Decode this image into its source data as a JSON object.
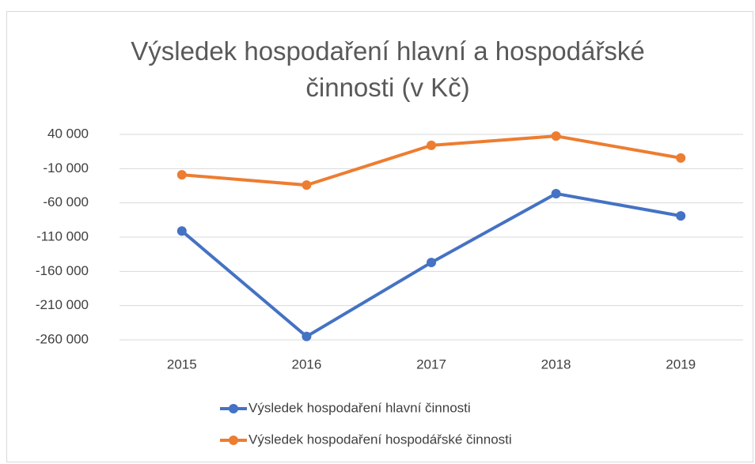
{
  "chart_data": {
    "type": "line",
    "title": "Výsledek hospodaření hlavní a hospodářské činnosti (v Kč)",
    "categories": [
      "2015",
      "2016",
      "2017",
      "2018",
      "2019"
    ],
    "series": [
      {
        "name": "Výsledek hospodaření hlavní činnosti",
        "color": "#4472c4",
        "values": [
          -101000,
          -255000,
          -147000,
          -46500,
          -79000
        ]
      },
      {
        "name": "Výsledek hospodaření hospodářské činnosti",
        "color": "#ed7d31",
        "values": [
          -19000,
          -34000,
          24000,
          37500,
          5500
        ]
      }
    ],
    "ylim": [
      -260000,
      40000
    ],
    "yticks": [
      {
        "value": 40000,
        "label": "40 000"
      },
      {
        "value": -10000,
        "label": "-10 000"
      },
      {
        "value": -60000,
        "label": "-60 000"
      },
      {
        "value": -110000,
        "label": "-110 000"
      },
      {
        "value": -160000,
        "label": "-160 000"
      },
      {
        "value": -210000,
        "label": "-210 000"
      },
      {
        "value": -260000,
        "label": "-260 000"
      }
    ],
    "grid": true,
    "legend": "bottom"
  }
}
